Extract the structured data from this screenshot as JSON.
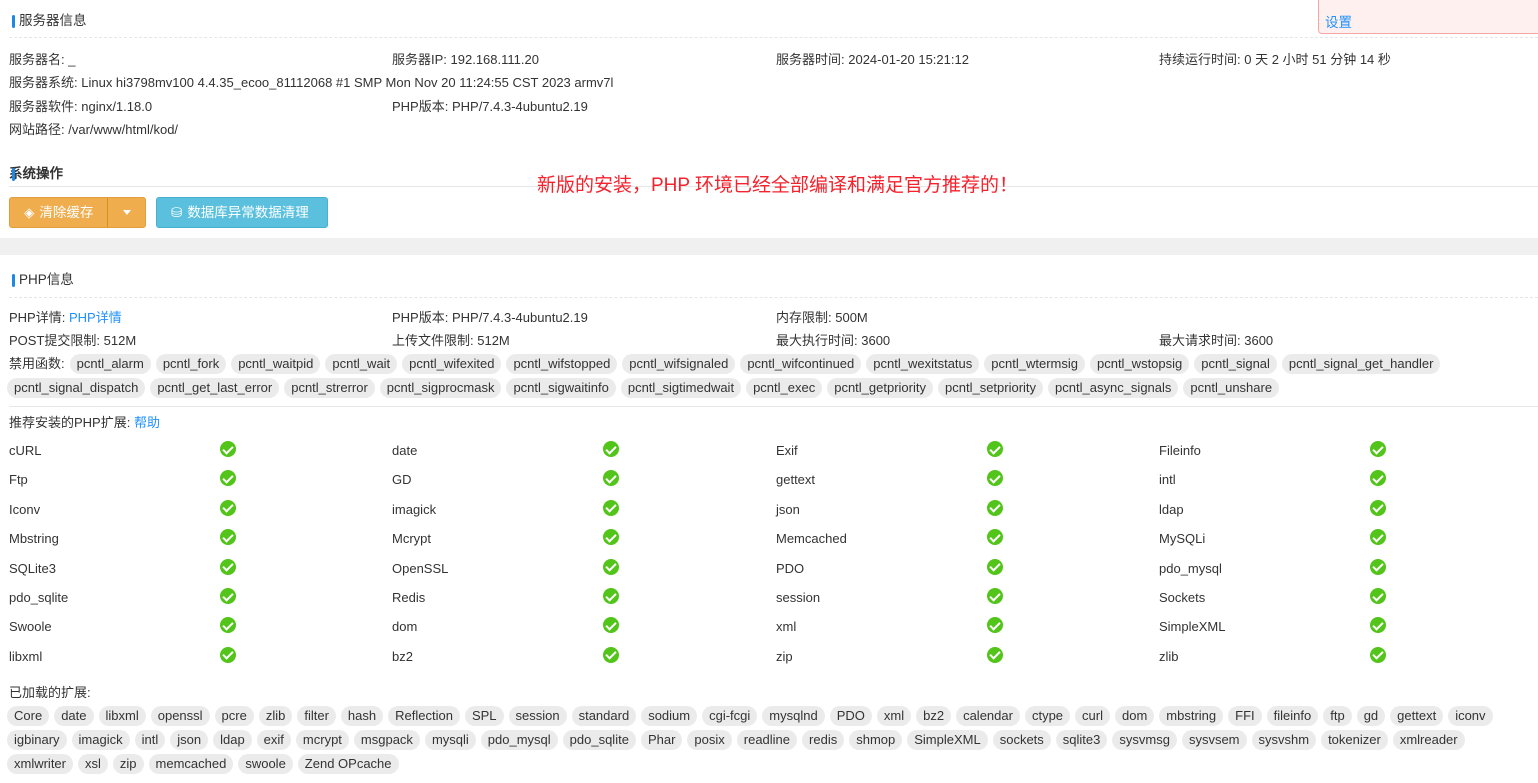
{
  "notice": {
    "link": "设置"
  },
  "server": {
    "title": "服务器信息",
    "rows": [
      [
        {
          "label": "服务器名: ",
          "value": "_"
        },
        {
          "label": "服务器IP: ",
          "value": "192.168.111.20"
        },
        {
          "label": "服务器时间: ",
          "value": "2024-01-20 15:21:12"
        },
        {
          "label": "持续运行时间: ",
          "value": "0 天 2 小时 51 分钟 14 秒"
        }
      ],
      [
        {
          "label": "服务器系统: ",
          "value": "Linux hi3798mv100 4.4.35_ecoo_81112068 #1 SMP Mon Nov 20 11:24:55 CST 2023 armv7l"
        }
      ],
      [
        {
          "label": "服务器软件: ",
          "value": "nginx/1.18.0"
        },
        {
          "label": "PHP版本: ",
          "value": "PHP/7.4.3-4ubuntu2.19"
        }
      ],
      [
        {
          "label": "网站路径: ",
          "value": "/var/www/html/kod/"
        }
      ]
    ],
    "ops_title": "系统操作",
    "clear_cache": "清除缓存",
    "db_cleanup": "数据库异常数据清理",
    "annotation": "新版的安装，PHP 环境已经全部编译和满足官方推荐的！"
  },
  "php": {
    "title": "PHP信息",
    "detail_label": "PHP详情: ",
    "detail_link": "PHP详情",
    "version_label": "PHP版本: ",
    "version": "PHP/7.4.3-4ubuntu2.19",
    "memory_label": "内存限制: ",
    "memory": "500M",
    "post_label": "POST提交限制: ",
    "post": "512M",
    "upload_label": "上传文件限制: ",
    "upload": "512M",
    "exec_label": "最大执行时间: ",
    "exec": "3600",
    "req_label": "最大请求时间: ",
    "req": "3600",
    "disabled_label": "禁用函数:",
    "disabled": [
      "pcntl_alarm",
      "pcntl_fork",
      "pcntl_waitpid",
      "pcntl_wait",
      "pcntl_wifexited",
      "pcntl_wifstopped",
      "pcntl_wifsignaled",
      "pcntl_wifcontinued",
      "pcntl_wexitstatus",
      "pcntl_wtermsig",
      "pcntl_wstopsig",
      "pcntl_signal",
      "pcntl_signal_get_handler",
      "pcntl_signal_dispatch",
      "pcntl_get_last_error",
      "pcntl_strerror",
      "pcntl_sigprocmask",
      "pcntl_sigwaitinfo",
      "pcntl_sigtimedwait",
      "pcntl_exec",
      "pcntl_getpriority",
      "pcntl_setpriority",
      "pcntl_async_signals",
      "pcntl_unshare"
    ],
    "recommended_label": "推荐安装的PHP扩展: ",
    "help_link": "帮助",
    "recommended": [
      "cURL",
      "date",
      "Exif",
      "Fileinfo",
      "Ftp",
      "GD",
      "gettext",
      "intl",
      "Iconv",
      "imagick",
      "json",
      "ldap",
      "Mbstring",
      "Mcrypt",
      "Memcached",
      "MySQLi",
      "SQLite3",
      "OpenSSL",
      "PDO",
      "pdo_mysql",
      "pdo_sqlite",
      "Redis",
      "session",
      "Sockets",
      "Swoole",
      "dom",
      "xml",
      "SimpleXML",
      "libxml",
      "bz2",
      "zip",
      "zlib"
    ],
    "loaded_label": "已加载的扩展:",
    "loaded": [
      "Core",
      "date",
      "libxml",
      "openssl",
      "pcre",
      "zlib",
      "filter",
      "hash",
      "Reflection",
      "SPL",
      "session",
      "standard",
      "sodium",
      "cgi-fcgi",
      "mysqlnd",
      "PDO",
      "xml",
      "bz2",
      "calendar",
      "ctype",
      "curl",
      "dom",
      "mbstring",
      "FFI",
      "fileinfo",
      "ftp",
      "gd",
      "gettext",
      "iconv",
      "igbinary",
      "imagick",
      "intl",
      "json",
      "ldap",
      "exif",
      "mcrypt",
      "msgpack",
      "mysqli",
      "pdo_mysql",
      "pdo_sqlite",
      "Phar",
      "posix",
      "readline",
      "redis",
      "shmop",
      "SimpleXML",
      "sockets",
      "sqlite3",
      "sysvmsg",
      "sysvsem",
      "sysvshm",
      "tokenizer",
      "xmlreader",
      "xmlwriter",
      "xsl",
      "zip",
      "memcached",
      "swoole",
      "Zend OPcache"
    ]
  }
}
